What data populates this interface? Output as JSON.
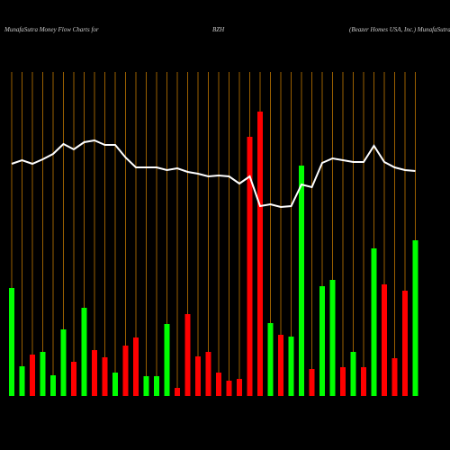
{
  "chart_data": {
    "type": "bar",
    "title": "MunafaSutra  Money Flow  Charts for",
    "symbol": "BZH",
    "company": "(Beazer Homes USA, Inc.) MunafaSutra.com",
    "values": [
      120,
      33,
      46,
      49,
      23,
      74,
      38,
      98,
      51,
      43,
      26,
      56,
      65,
      22,
      22,
      80,
      9,
      91,
      44,
      49,
      26,
      17,
      19,
      288,
      316,
      81,
      68,
      66,
      256,
      30,
      122,
      129,
      32,
      49,
      32,
      164,
      124,
      42,
      117,
      173
    ],
    "colors": [
      "#00ff00",
      "#00ff00",
      "#ff0000",
      "#00ff00",
      "#00ff00",
      "#00ff00",
      "#ff0000",
      "#00ff00",
      "#ff0000",
      "#ff0000",
      "#00ff00",
      "#ff0000",
      "#ff0000",
      "#00ff00",
      "#00ff00",
      "#00ff00",
      "#ff0000",
      "#ff0000",
      "#ff0000",
      "#ff0000",
      "#ff0000",
      "#ff0000",
      "#ff0000",
      "#ff0000",
      "#ff0000",
      "#00ff00",
      "#ff0000",
      "#00ff00",
      "#00ff00",
      "#ff0000",
      "#00ff00",
      "#00ff00",
      "#ff0000",
      "#00ff00",
      "#ff0000",
      "#00ff00",
      "#ff0000",
      "#ff0000",
      "#ff0000",
      "#00ff00"
    ],
    "line_values": [
      258,
      262,
      258,
      263,
      269,
      280,
      274,
      282,
      284,
      279,
      279,
      265,
      254,
      254,
      254,
      251,
      253,
      249,
      247,
      244,
      245,
      244,
      236,
      244,
      211,
      213,
      210,
      211,
      235,
      232,
      259,
      264,
      262,
      260,
      260,
      278,
      260,
      254,
      251,
      250
    ],
    "line_color": "#ffffff",
    "grid_color": "#9a5f00",
    "ylim": [
      0,
      360
    ]
  }
}
